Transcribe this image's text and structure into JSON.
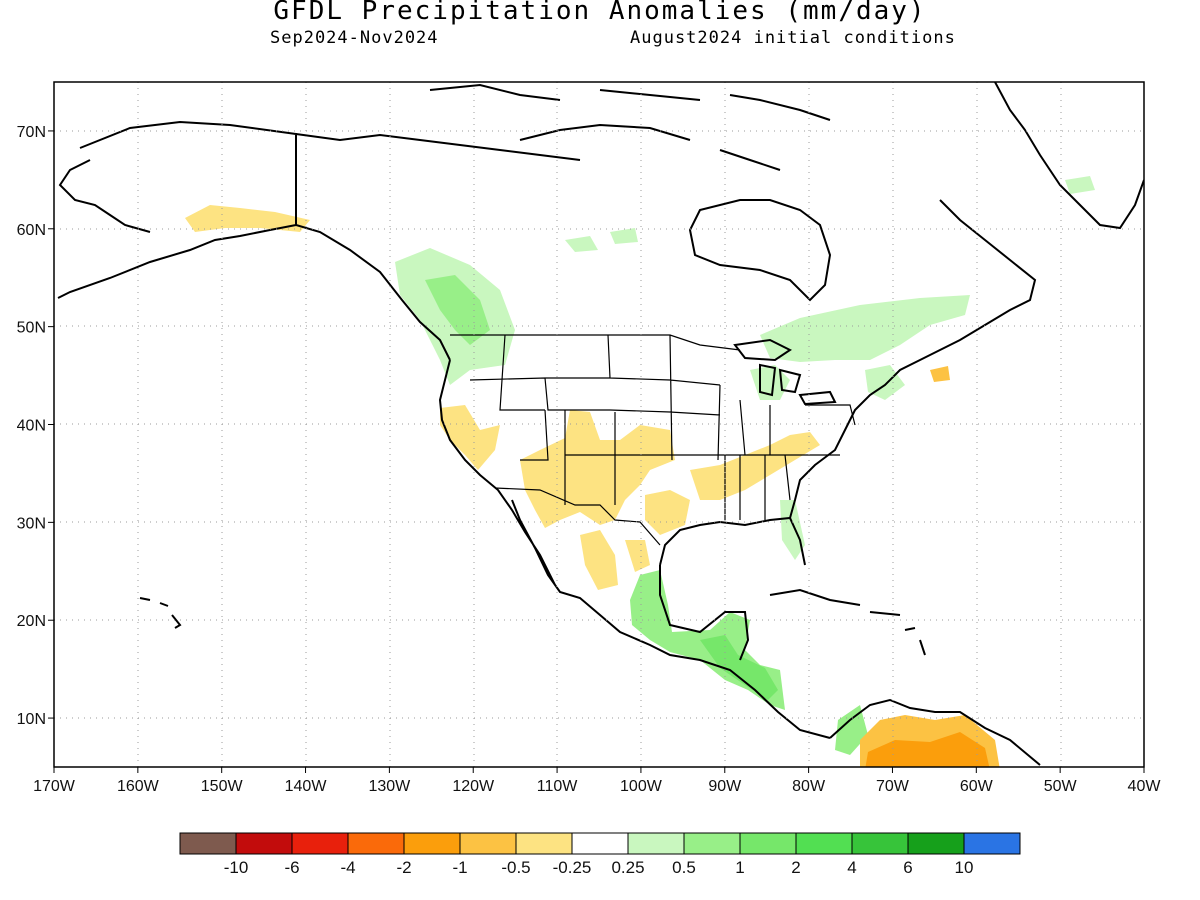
{
  "title": "GFDL Precipitation Anomalies (mm/day)",
  "subtitle_left": "Sep2024-Nov2024",
  "subtitle_right": "August2024 initial conditions",
  "map": {
    "lon_range": [
      -170,
      -40
    ],
    "lat_range": [
      5,
      75
    ],
    "x_ticks": [
      "170W",
      "160W",
      "150W",
      "140W",
      "130W",
      "120W",
      "110W",
      "100W",
      "90W",
      "80W",
      "70W",
      "60W",
      "50W",
      "40W"
    ],
    "y_ticks": [
      "70N",
      "60N",
      "50N",
      "40N",
      "30N",
      "20N",
      "10N"
    ]
  },
  "legend": {
    "colors": [
      "#7e5a4e",
      "#c20c0c",
      "#e8200c",
      "#fa6a0a",
      "#fb9e0c",
      "#fcc243",
      "#fde382",
      "#ffffff",
      "#c9f7bf",
      "#98ef88",
      "#76e76a",
      "#52df52",
      "#37c43a",
      "#16a01b",
      "#2a74e4"
    ],
    "labels": [
      "-10",
      "-6",
      "-4",
      "-2",
      "-1",
      "-0.5",
      "-0.25",
      "0.25",
      "0.5",
      "1",
      "2",
      "4",
      "6",
      "10"
    ]
  },
  "colors": {
    "dry_light": "#fde382",
    "dry_mid": "#fcc243",
    "dry_strong": "#fb9e0c",
    "wet_light": "#c9f7bf",
    "wet_mid": "#98ef88",
    "wet_strong": "#76e76a"
  }
}
